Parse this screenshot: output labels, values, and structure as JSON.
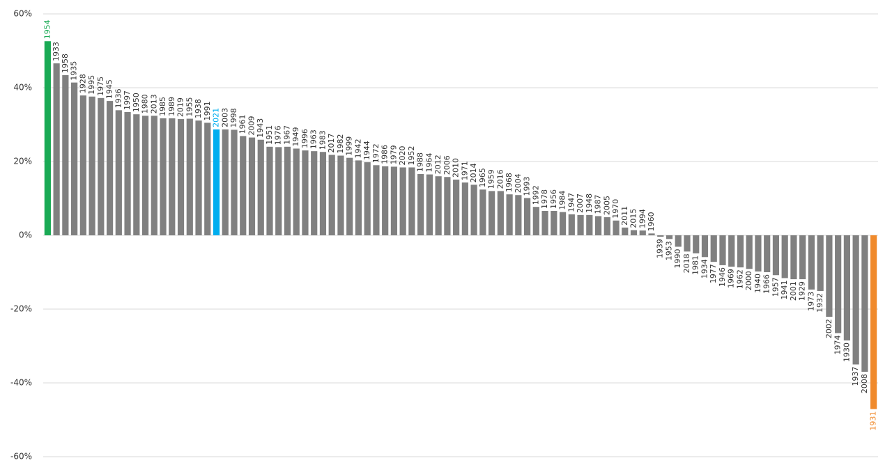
{
  "chart_data": {
    "type": "bar",
    "categories": [
      "1954",
      "1933",
      "1958",
      "1935",
      "1928",
      "1995",
      "1975",
      "1945",
      "1936",
      "1997",
      "1950",
      "1980",
      "2013",
      "1985",
      "1989",
      "2019",
      "1955",
      "1938",
      "1991",
      "2021",
      "2003",
      "1998",
      "1961",
      "2009",
      "1943",
      "1951",
      "1976",
      "1967",
      "1949",
      "1996",
      "1963",
      "1983",
      "2017",
      "1982",
      "1999",
      "1942",
      "1944",
      "1972",
      "1986",
      "1979",
      "2020",
      "1952",
      "1988",
      "1964",
      "2012",
      "2006",
      "2010",
      "1971",
      "2014",
      "1965",
      "1959",
      "2016",
      "1968",
      "2004",
      "1993",
      "1992",
      "1978",
      "1956",
      "1984",
      "1947",
      "2007",
      "1948",
      "1987",
      "2005",
      "1970",
      "2011",
      "2015",
      "1994",
      "1960",
      "1939",
      "1953",
      "1990",
      "2018",
      "1981",
      "1934",
      "1977",
      "1946",
      "1969",
      "1962",
      "2000",
      "1940",
      "1966",
      "1957",
      "1941",
      "2001",
      "1929",
      "1973",
      "1932",
      "2002",
      "1974",
      "1930",
      "1937",
      "2008",
      "1931"
    ],
    "values": [
      52.6,
      46.6,
      43.4,
      41.4,
      37.9,
      37.6,
      37.2,
      36.4,
      33.9,
      33.4,
      32.8,
      32.4,
      32.4,
      31.7,
      31.7,
      31.5,
      31.6,
      31.1,
      30.5,
      28.7,
      28.7,
      28.6,
      26.9,
      26.5,
      25.9,
      24.0,
      23.9,
      24.0,
      23.5,
      23.0,
      22.8,
      22.6,
      21.8,
      21.6,
      21.0,
      20.3,
      19.8,
      19.0,
      18.7,
      18.6,
      18.4,
      18.4,
      16.6,
      16.5,
      16.0,
      15.8,
      15.1,
      14.3,
      13.7,
      12.4,
      12.0,
      12.0,
      11.1,
      10.9,
      10.1,
      7.7,
      6.6,
      6.6,
      6.3,
      5.7,
      5.5,
      5.5,
      5.2,
      4.9,
      4.0,
      2.1,
      1.4,
      1.3,
      0.5,
      -0.4,
      -1.0,
      -3.1,
      -4.4,
      -4.9,
      -5.9,
      -7.2,
      -8.1,
      -8.5,
      -8.7,
      -9.1,
      -9.8,
      -10.0,
      -10.8,
      -11.6,
      -11.9,
      -11.9,
      -14.7,
      -15.1,
      -22.1,
      -26.5,
      -28.5,
      -35.0,
      -37.0,
      -47.1
    ],
    "color": "#808080",
    "highlights": {
      "1954": "#1aaa55",
      "2021": "#00aeef",
      "1931": "#f08a2c"
    },
    "ylim": [
      -60,
      60
    ],
    "yticks": [
      {
        "value": -60,
        "label": "-60%"
      },
      {
        "value": -40,
        "label": "-40%"
      },
      {
        "value": -20,
        "label": "-20%"
      },
      {
        "value": 0,
        "label": "0%"
      },
      {
        "value": 20,
        "label": "20%"
      },
      {
        "value": 40,
        "label": "40%"
      },
      {
        "value": 60,
        "label": "60%"
      }
    ],
    "grid": true
  }
}
